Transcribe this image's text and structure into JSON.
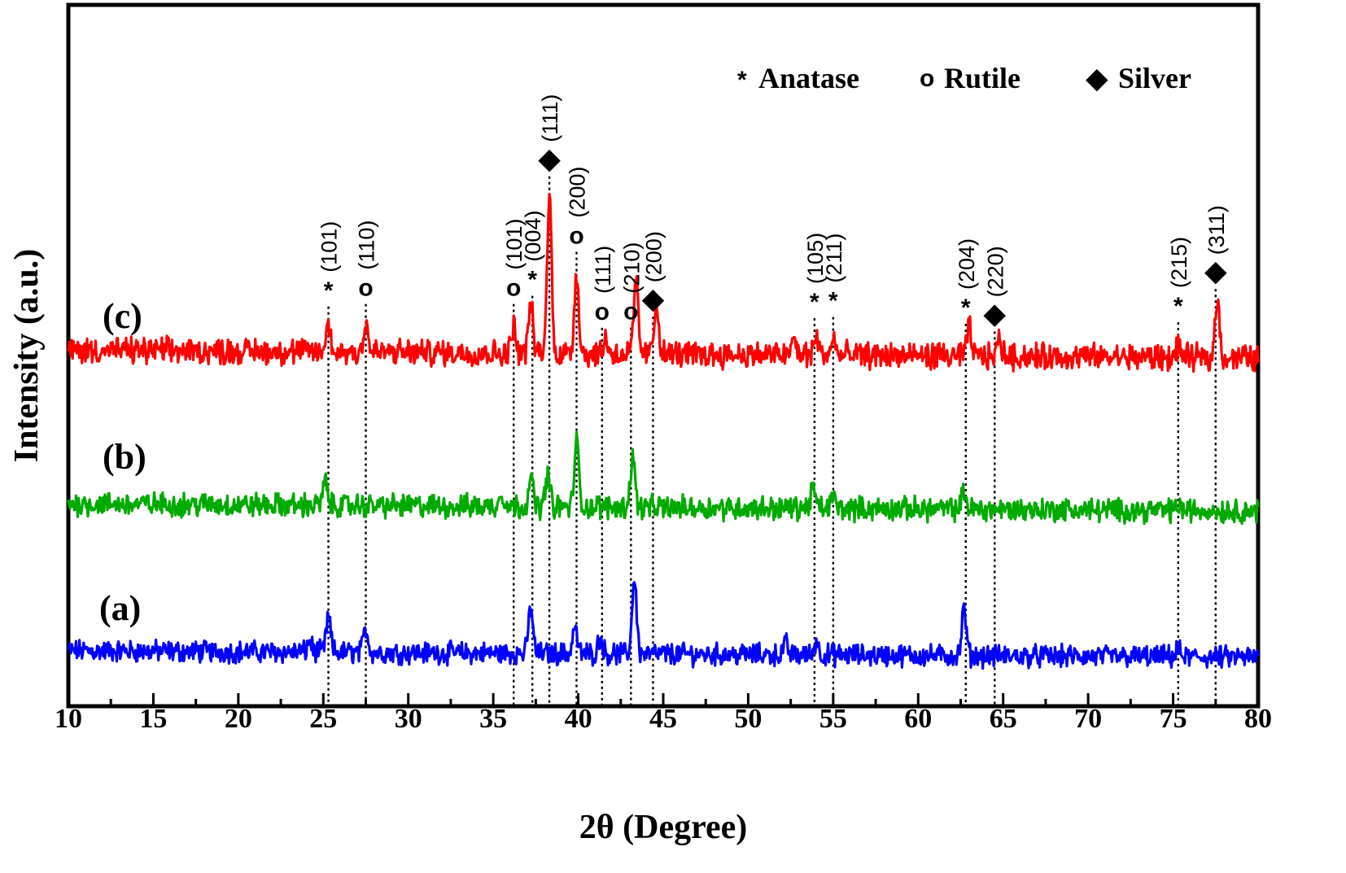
{
  "chart_data": {
    "type": "line",
    "xlabel": "2θ (Degree)",
    "ylabel": "Intensity (a.u.)",
    "xlim": [
      10,
      80
    ],
    "x_ticks": [
      10,
      15,
      20,
      25,
      30,
      35,
      40,
      45,
      50,
      55,
      60,
      65,
      70,
      75,
      80
    ],
    "y_ticks_labeled": false,
    "grid": false,
    "legend_position": "top-right",
    "legend": [
      {
        "symbol": "*",
        "label": "Anatase"
      },
      {
        "symbol": "o",
        "label": "Rutile"
      },
      {
        "symbol": "◆",
        "label": "Silver"
      }
    ],
    "series": [
      {
        "name": "(a)",
        "color": "#0000ff",
        "peaks": [
          {
            "x": 25.3,
            "h": 0.32
          },
          {
            "x": 24.2,
            "h": 0.1
          },
          {
            "x": 27.5,
            "h": 0.22
          },
          {
            "x": 37.2,
            "h": 0.42
          },
          {
            "x": 39.8,
            "h": 0.25
          },
          {
            "x": 41.3,
            "h": 0.15
          },
          {
            "x": 43.3,
            "h": 0.7
          },
          {
            "x": 52.2,
            "h": 0.1
          },
          {
            "x": 54.0,
            "h": 0.12
          },
          {
            "x": 62.7,
            "h": 0.42
          },
          {
            "x": 75.3,
            "h": 0.06
          }
        ]
      },
      {
        "name": "(b)",
        "color": "#00aa00",
        "peaks": [
          {
            "x": 25.1,
            "h": 0.2
          },
          {
            "x": 35.5,
            "h": 0.12
          },
          {
            "x": 37.2,
            "h": 0.25
          },
          {
            "x": 38.2,
            "h": 0.28
          },
          {
            "x": 39.9,
            "h": 0.55
          },
          {
            "x": 43.2,
            "h": 0.45
          },
          {
            "x": 53.8,
            "h": 0.18
          },
          {
            "x": 55.0,
            "h": 0.1
          },
          {
            "x": 62.7,
            "h": 0.15
          },
          {
            "x": 75.3,
            "h": 0.05
          }
        ]
      },
      {
        "name": "(c)",
        "color": "#ff0000",
        "peaks": [
          {
            "x": 25.3,
            "h": 0.2
          },
          {
            "x": 27.5,
            "h": 0.22
          },
          {
            "x": 36.2,
            "h": 0.22
          },
          {
            "x": 37.2,
            "h": 0.38
          },
          {
            "x": 38.3,
            "h": 1.2
          },
          {
            "x": 39.9,
            "h": 0.62
          },
          {
            "x": 41.6,
            "h": 0.12
          },
          {
            "x": 43.4,
            "h": 0.55
          },
          {
            "x": 44.6,
            "h": 0.4
          },
          {
            "x": 52.7,
            "h": 0.12
          },
          {
            "x": 54.0,
            "h": 0.15
          },
          {
            "x": 55.0,
            "h": 0.12
          },
          {
            "x": 63.0,
            "h": 0.22
          },
          {
            "x": 64.8,
            "h": 0.13
          },
          {
            "x": 75.3,
            "h": 0.08
          },
          {
            "x": 77.6,
            "h": 0.45
          }
        ]
      }
    ],
    "reflections": [
      {
        "x": 25.3,
        "phase": "anatase",
        "hkl": "(101)"
      },
      {
        "x": 27.5,
        "phase": "rutile",
        "hkl": "(110)"
      },
      {
        "x": 36.2,
        "phase": "rutile",
        "hkl": "(101)"
      },
      {
        "x": 37.3,
        "phase": "anatase",
        "hkl": "(004)"
      },
      {
        "x": 38.3,
        "phase": "silver",
        "hkl": "(111)"
      },
      {
        "x": 39.9,
        "phase": "rutile",
        "hkl": "(200)"
      },
      {
        "x": 41.4,
        "phase": "rutile",
        "hkl": "(111)"
      },
      {
        "x": 43.1,
        "phase": "rutile",
        "hkl": "(210)"
      },
      {
        "x": 44.4,
        "phase": "silver",
        "hkl": "(200)"
      },
      {
        "x": 53.9,
        "phase": "anatase",
        "hkl": "(105)"
      },
      {
        "x": 55.0,
        "phase": "anatase",
        "hkl": "(211)"
      },
      {
        "x": 62.8,
        "phase": "anatase",
        "hkl": "(204)"
      },
      {
        "x": 64.5,
        "phase": "silver",
        "hkl": "(220)"
      },
      {
        "x": 75.3,
        "phase": "anatase",
        "hkl": "(215)"
      },
      {
        "x": 77.5,
        "phase": "silver",
        "hkl": "(311)"
      }
    ]
  }
}
